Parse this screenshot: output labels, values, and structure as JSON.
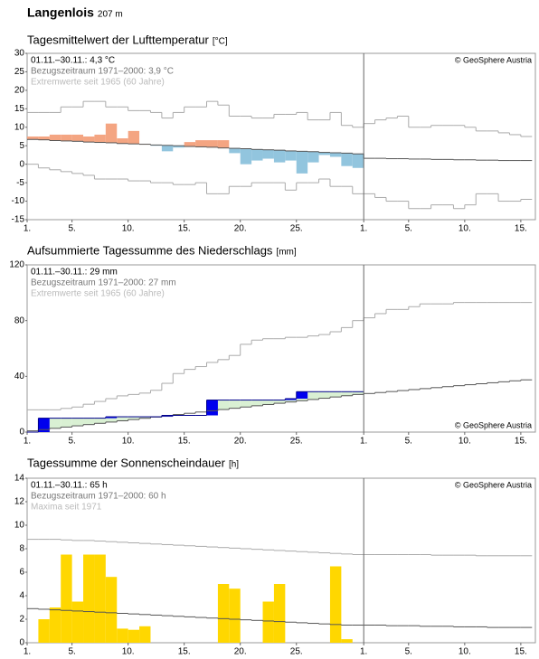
{
  "header": {
    "station": "Langenlois",
    "elevation": "207 m"
  },
  "chart_data": [
    {
      "type": "anomaly",
      "title": "Tagesmittelwert der Lufttemperatur",
      "unit": "[°C]",
      "notes": [
        "01.11.–30.11.: 4,3 °C",
        "Bezugszeitraum 1971–2000: 3,9 °C",
        "Extremwerte seit 1965 (60 Jahre)"
      ],
      "copyright": "© GeoSphere Austria",
      "copyright_corner": "top-right",
      "xlim": [
        0,
        45.3
      ],
      "xticks": [
        {
          "value": 0,
          "label": "1."
        },
        {
          "value": 4,
          "label": "5."
        },
        {
          "value": 9,
          "label": "10."
        },
        {
          "value": 14,
          "label": "15."
        },
        {
          "value": 19,
          "label": "20."
        },
        {
          "value": 24,
          "label": "25."
        },
        {
          "value": 30,
          "label": "1."
        },
        {
          "value": 34,
          "label": "5."
        },
        {
          "value": 39,
          "label": "10."
        },
        {
          "value": 44,
          "label": "15."
        }
      ],
      "divider": 30,
      "ylim": [
        -15,
        30
      ],
      "yticks": [
        -15,
        -10,
        -5,
        0,
        5,
        10,
        15,
        20,
        25,
        30
      ],
      "warm_color": "#f4a582",
      "cold_color": "#92c5de",
      "series": [
        {
          "values": [
            7.5,
            7.5,
            8,
            8,
            8,
            7.5,
            8,
            11,
            7,
            9,
            5.5,
            5,
            3.5,
            4.5,
            6,
            6.5,
            6.5,
            6.5,
            3,
            0,
            1,
            1.5,
            0.5,
            1,
            -2.5,
            0.5,
            2.5,
            2,
            -0.5,
            -1
          ]
        },
        {
          "color": "#555555",
          "values": [
            6.7,
            6.6,
            6.4,
            6.3,
            6.2,
            6.0,
            5.9,
            5.8,
            5.6,
            5.5,
            5.4,
            5.2,
            5.1,
            5.0,
            4.8,
            4.7,
            4.6,
            4.4,
            4.3,
            4.2,
            4.0,
            3.9,
            3.8,
            3.6,
            3.5,
            3.4,
            3.2,
            3.1,
            3.0,
            2.8,
            1.6,
            1.6,
            1.5,
            1.5,
            1.4,
            1.4,
            1.3,
            1.3,
            1.2,
            1.2,
            1.1,
            1.1,
            1.0,
            1.0,
            1.0
          ]
        },
        {
          "color": "#aaaaaa",
          "values": [
            14,
            14,
            14,
            15.5,
            15.5,
            17,
            17,
            15.5,
            15.5,
            14.5,
            14.5,
            14,
            12.5,
            14,
            15.5,
            15.5,
            17,
            16,
            13,
            13,
            12.5,
            12.5,
            13.5,
            13.5,
            14,
            12,
            12,
            14,
            10.5,
            10,
            11,
            12,
            12.5,
            13,
            10,
            10,
            10.5,
            10.5,
            10.5,
            10,
            9,
            9,
            8.5,
            8,
            7.5
          ]
        },
        {
          "color": "#aaaaaa",
          "values": [
            0,
            -1,
            -1.5,
            -2,
            -2.5,
            -3,
            -4,
            -4,
            -4,
            -4.5,
            -4.5,
            -5,
            -5,
            -5.5,
            -5.5,
            -5,
            -8,
            -8,
            -6,
            -6,
            -5,
            -5,
            -5,
            -7,
            -5,
            -5,
            -4,
            -6,
            -6,
            -8,
            -8,
            -9,
            -10,
            -10,
            -12,
            -12,
            -11,
            -11,
            -12,
            -11,
            -8,
            -8,
            -10,
            -10,
            -9.5
          ]
        }
      ]
    },
    {
      "type": "cumulative",
      "title": "Aufsummierte Tagessumme des Niederschlags",
      "unit": "[mm]",
      "notes": [
        "01.11.–30.11.: 29 mm",
        "Bezugszeitraum 1971–2000: 27 mm",
        "Extremwerte seit 1965 (60 Jahre)"
      ],
      "copyright": "© GeoSphere Austria",
      "copyright_corner": "bottom-right",
      "xlim": [
        0,
        45.3
      ],
      "xticks": [
        {
          "value": 0,
          "label": "1."
        },
        {
          "value": 4,
          "label": "5."
        },
        {
          "value": 9,
          "label": "10."
        },
        {
          "value": 14,
          "label": "15."
        },
        {
          "value": 19,
          "label": "20."
        },
        {
          "value": 24,
          "label": "25."
        },
        {
          "value": 30,
          "label": "1."
        },
        {
          "value": 34,
          "label": "5."
        },
        {
          "value": 39,
          "label": "10."
        },
        {
          "value": 44,
          "label": "15."
        }
      ],
      "divider": 30,
      "ylim": [
        0,
        120
      ],
      "yticks": [
        0,
        40,
        80,
        120
      ],
      "increment_color": "#0000ee",
      "excess_color": "#d9f0d3",
      "series": [
        {
          "color": "#00008b",
          "values": [
            0,
            10,
            10,
            10,
            10,
            10,
            10,
            11,
            11,
            11,
            11,
            11,
            12,
            12,
            12,
            12,
            23,
            23,
            23,
            23,
            23,
            23,
            23,
            24,
            29,
            29,
            29,
            29,
            29,
            29
          ]
        },
        {
          "color": "#555555",
          "values": [
            0.9,
            1.8,
            2.7,
            3.6,
            4.5,
            5.4,
            6.3,
            7.2,
            8.1,
            9,
            9.9,
            10.8,
            11.7,
            12.6,
            13.5,
            14.4,
            15.3,
            16.2,
            17.1,
            18,
            18.9,
            19.8,
            20.7,
            21.6,
            22.5,
            23.4,
            24.3,
            25.2,
            26.1,
            27,
            27.7,
            28.4,
            29.1,
            29.8,
            30.5,
            31.2,
            31.9,
            32.6,
            33.3,
            34,
            34.7,
            35.4,
            36.1,
            36.8,
            37.5
          ]
        },
        {
          "color": "#aaaaaa",
          "values": [
            16,
            16,
            16,
            17,
            18,
            20,
            22,
            24,
            26,
            27,
            28,
            30,
            35,
            42,
            45,
            47,
            50,
            52,
            55,
            63,
            66,
            67,
            67,
            68,
            68,
            69,
            70,
            72,
            75,
            80,
            82,
            85,
            88,
            88,
            90,
            92,
            92,
            92,
            93,
            93,
            93,
            93,
            93,
            93,
            93
          ]
        }
      ]
    },
    {
      "type": "bar",
      "title": "Tagessumme der Sonnenscheindauer",
      "unit": "[h]",
      "notes": [
        "01.11.–30.11.: 65 h",
        "Bezugszeitraum 1971–2000: 60 h",
        "Maxima seit 1971"
      ],
      "copyright": "© GeoSphere Austria",
      "copyright_corner": "top-right",
      "xlim": [
        0,
        45.3
      ],
      "xticks": [
        {
          "value": 0,
          "label": "1."
        },
        {
          "value": 4,
          "label": "5."
        },
        {
          "value": 9,
          "label": "10."
        },
        {
          "value": 14,
          "label": "15."
        },
        {
          "value": 19,
          "label": "20."
        },
        {
          "value": 24,
          "label": "25."
        },
        {
          "value": 30,
          "label": "1."
        },
        {
          "value": 34,
          "label": "5."
        },
        {
          "value": 39,
          "label": "10."
        },
        {
          "value": 44,
          "label": "15."
        }
      ],
      "divider": 30,
      "ylim": [
        0,
        14
      ],
      "yticks": [
        0,
        2,
        4,
        6,
        8,
        10,
        12,
        14
      ],
      "series": [
        {
          "color": "#ffd700",
          "values": [
            0,
            2,
            3,
            7.5,
            3.5,
            7.5,
            7.5,
            5.6,
            1.2,
            1.1,
            1.4,
            0,
            0,
            0,
            0,
            0,
            0,
            5,
            4.6,
            0,
            0,
            3.5,
            5,
            0,
            0,
            0,
            0,
            6.5,
            0.3,
            0
          ]
        },
        {
          "color": "#555555",
          "values": [
            2.9,
            2.85,
            2.8,
            2.75,
            2.7,
            2.65,
            2.6,
            2.55,
            2.5,
            2.45,
            2.4,
            2.35,
            2.3,
            2.25,
            2.2,
            2.15,
            2.1,
            2.05,
            2.0,
            1.95,
            1.9,
            1.85,
            1.8,
            1.75,
            1.7,
            1.65,
            1.6,
            1.55,
            1.5,
            1.5,
            1.5,
            1.5,
            1.45,
            1.45,
            1.45,
            1.4,
            1.4,
            1.4,
            1.35,
            1.35,
            1.35,
            1.3,
            1.3,
            1.3,
            1.3
          ]
        },
        {
          "color": "#aaaaaa",
          "values": [
            8.8,
            8.8,
            8.8,
            8.75,
            8.7,
            8.7,
            8.65,
            8.6,
            8.55,
            8.5,
            8.45,
            8.4,
            8.35,
            8.3,
            8.25,
            8.2,
            8.15,
            8.1,
            8.05,
            8.0,
            7.95,
            7.9,
            7.85,
            7.8,
            7.75,
            7.7,
            7.65,
            7.6,
            7.55,
            7.5,
            7.5,
            7.5,
            7.5,
            7.5,
            7.5,
            7.5,
            7.45,
            7.45,
            7.45,
            7.45,
            7.4,
            7.4,
            7.4,
            7.4,
            7.4
          ]
        }
      ]
    }
  ]
}
